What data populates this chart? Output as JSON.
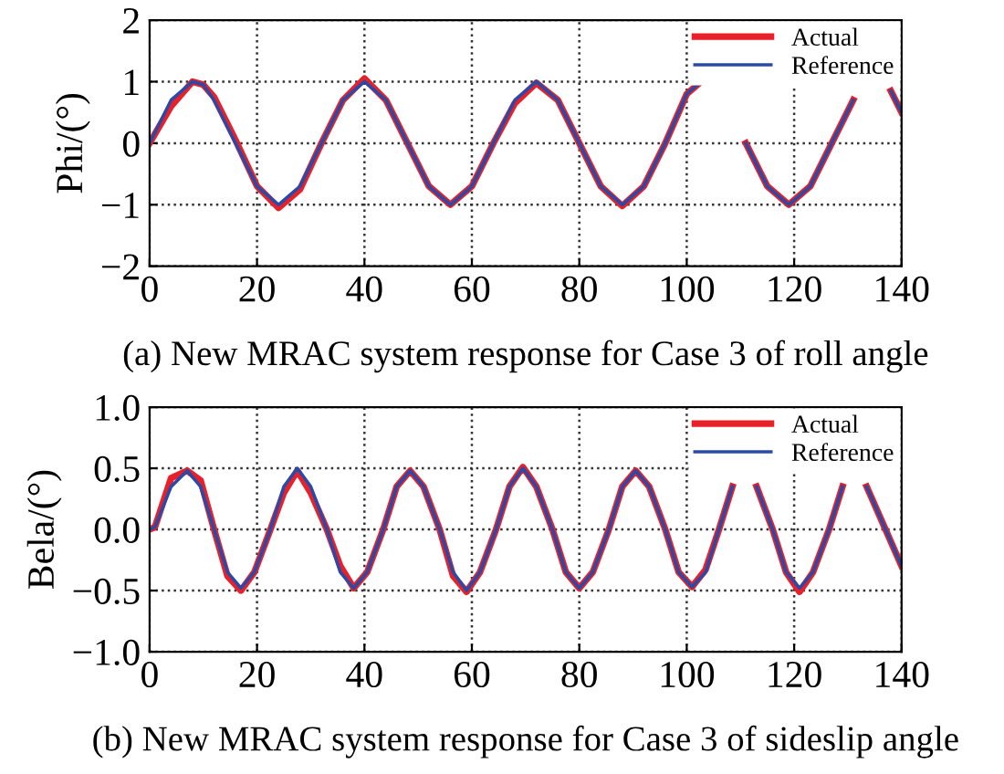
{
  "chart_data": [
    {
      "type": "line",
      "xlabel": "(a) New MRAC system response for Case 3 of roll angle",
      "ylabel": "Phi/(°)",
      "x": [
        0,
        4,
        8,
        10,
        12,
        16,
        20,
        24,
        28,
        32,
        36,
        40,
        44,
        48,
        52,
        56,
        60,
        64,
        68,
        72,
        76,
        80,
        84,
        88,
        92,
        96,
        100,
        102,
        106,
        111,
        115,
        119,
        123,
        127,
        131,
        135,
        138,
        140
      ],
      "series": [
        {
          "name": "Actual",
          "color": "#e8202a",
          "values": [
            0,
            0.6,
            1,
            0.95,
            0.75,
            0.05,
            -0.7,
            -1.05,
            -0.75,
            0,
            0.7,
            1.05,
            0.7,
            0,
            -0.7,
            -1,
            -0.7,
            0,
            0.65,
            0.98,
            0.7,
            0,
            -0.7,
            -1.02,
            -0.7,
            0,
            0.8,
            0.95,
            null,
            0,
            -0.7,
            -1,
            -0.7,
            0,
            0.7,
            null,
            0.85,
            0.5
          ]
        },
        {
          "name": "Reference",
          "color": "#2a4aa8",
          "values": [
            0,
            0.7,
            1,
            0.95,
            0.7,
            0,
            -0.7,
            -1,
            -0.7,
            0,
            0.7,
            1,
            0.7,
            0,
            -0.7,
            -1,
            -0.7,
            0,
            0.7,
            1,
            0.7,
            0,
            -0.7,
            -1,
            -0.7,
            0,
            0.8,
            0.95,
            null,
            0,
            -0.7,
            -1,
            -0.7,
            0,
            0.7,
            null,
            0.85,
            0.5
          ]
        }
      ],
      "xlim": [
        0,
        140
      ],
      "xticks": [
        0,
        20,
        40,
        60,
        80,
        100,
        120,
        140
      ],
      "ylim": [
        -2,
        2
      ],
      "yticks": [
        {
          "value": -2,
          "label": "−2"
        },
        {
          "value": -1,
          "label": "−1"
        },
        0,
        1,
        2
      ],
      "grid": true,
      "legend": "top right",
      "line_style": "solid"
    },
    {
      "type": "line",
      "xlabel": "(b) New MRAC system response for Case 3 of sideslip angle",
      "ylabel": "Bela/(°)",
      "x": [
        0,
        1,
        4,
        7,
        9.5,
        12,
        14.5,
        17,
        19.5,
        22.5,
        25,
        27.5,
        30,
        33,
        35.5,
        38,
        40.5,
        43.5,
        46,
        48.5,
        51,
        54,
        56.5,
        59,
        61.5,
        64.5,
        67,
        69.5,
        72,
        75,
        77.5,
        80,
        82.5,
        85.5,
        88,
        90.5,
        93,
        96,
        98.5,
        101,
        103.5,
        106,
        108.5,
        110.5,
        113,
        116,
        118.5,
        121,
        123.5,
        126.5,
        129,
        131,
        133.5,
        137,
        140
      ],
      "series": [
        {
          "name": "Actual",
          "color": "#e8202a",
          "values": [
            0,
            0.02,
            0.42,
            0.48,
            0.4,
            0,
            -0.38,
            -0.5,
            -0.35,
            0,
            0.3,
            0.48,
            0.3,
            0,
            -0.3,
            -0.48,
            -0.35,
            0,
            0.35,
            0.48,
            0.35,
            0,
            -0.38,
            -0.51,
            -0.35,
            0,
            0.35,
            0.51,
            0.35,
            0,
            -0.35,
            -0.48,
            -0.35,
            0,
            0.35,
            0.48,
            0.35,
            0,
            -0.35,
            -0.47,
            -0.33,
            0,
            0.35,
            null,
            0.35,
            0,
            -0.35,
            -0.51,
            -0.35,
            0,
            0.35,
            null,
            0.35,
            0,
            -0.3
          ]
        },
        {
          "name": "Reference",
          "color": "#2a4aa8",
          "values": [
            0,
            0.02,
            0.35,
            0.48,
            0.35,
            0,
            -0.35,
            -0.48,
            -0.35,
            0,
            0.35,
            0.5,
            0.35,
            0,
            -0.35,
            -0.48,
            -0.35,
            0,
            0.35,
            0.48,
            0.35,
            0,
            -0.35,
            -0.5,
            -0.35,
            0,
            0.35,
            0.5,
            0.35,
            0,
            -0.35,
            -0.48,
            -0.35,
            0,
            0.35,
            0.48,
            0.35,
            0,
            -0.35,
            -0.47,
            -0.35,
            0,
            0.35,
            null,
            0.35,
            0,
            -0.35,
            -0.48,
            -0.35,
            0,
            0.35,
            null,
            0.35,
            0,
            -0.3
          ]
        }
      ],
      "xlim": [
        0,
        140
      ],
      "xticks": [
        0,
        20,
        40,
        60,
        80,
        100,
        120,
        140
      ],
      "ylim": [
        -1,
        1
      ],
      "yticks": [
        {
          "value": -1,
          "label": "−1.0"
        },
        {
          "value": -0.5,
          "label": "−0.5"
        },
        {
          "value": 0,
          "label": "0.0"
        },
        {
          "value": 0.5,
          "label": "0.5"
        },
        {
          "value": 1,
          "label": "1.0"
        }
      ],
      "grid": true,
      "legend": "top right",
      "line_style": "solid"
    }
  ]
}
